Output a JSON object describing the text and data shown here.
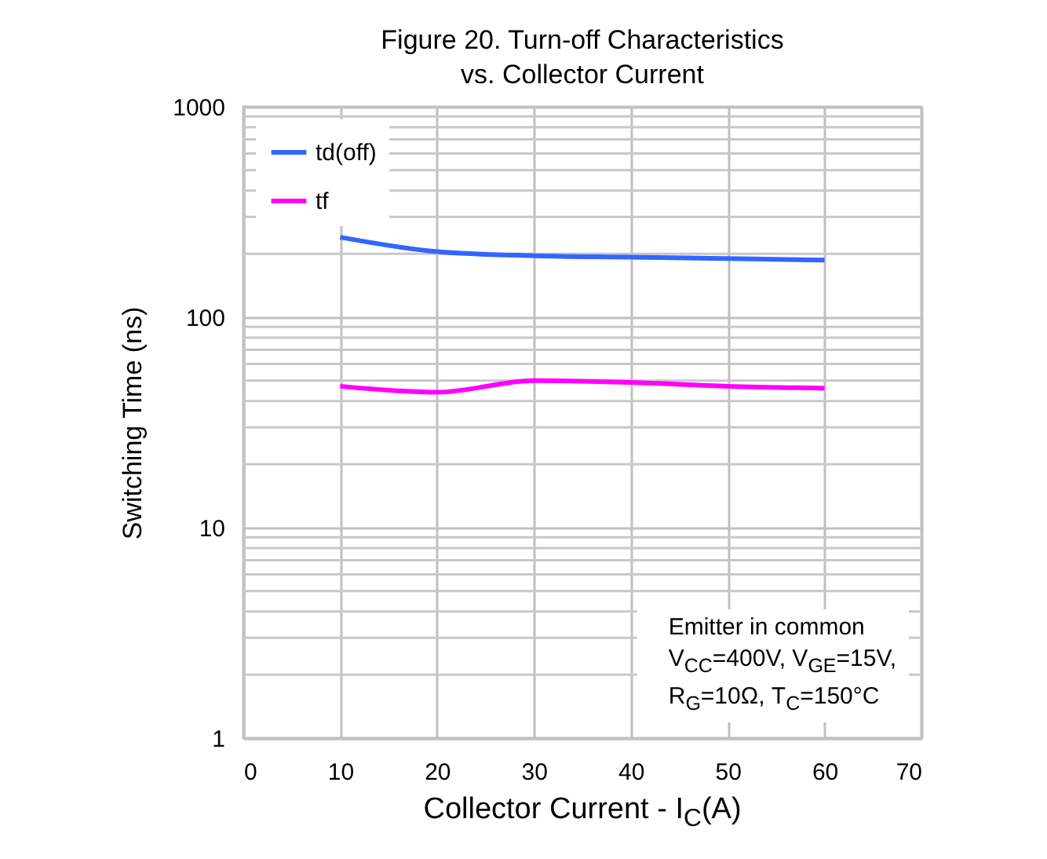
{
  "chart_data": {
    "type": "line",
    "title": "Figure 20. Turn-off Characteristics\nvs. Collector Current",
    "xlabel": "Collector Current - I$_{C}$(A)",
    "ylabel": "Switching Time (ns)",
    "x": [
      10,
      20,
      30,
      40,
      50,
      60
    ],
    "series": [
      {
        "name": "td(off)",
        "color": "#3366ff",
        "values": [
          240,
          205,
          196,
          193,
          190,
          187
        ]
      },
      {
        "name": "tf",
        "color": "#ff00ff",
        "values": [
          47,
          44,
          50,
          49,
          47,
          46
        ]
      }
    ],
    "xlim": [
      0,
      70
    ],
    "xticks": [
      0,
      10,
      20,
      30,
      40,
      50,
      60,
      70
    ],
    "ylim": [
      1,
      1000
    ],
    "yticks": [
      1,
      10,
      100,
      1000
    ],
    "log": true,
    "grid": true,
    "legend": "top left",
    "marker": "none",
    "line_style": "solid",
    "annotations": [
      "Emitter in common\nV$_{CC}$=400V, V$_{GE}$=15V,\nR$_{G}$=10Ω, T$_{C}$=150°C"
    ]
  }
}
